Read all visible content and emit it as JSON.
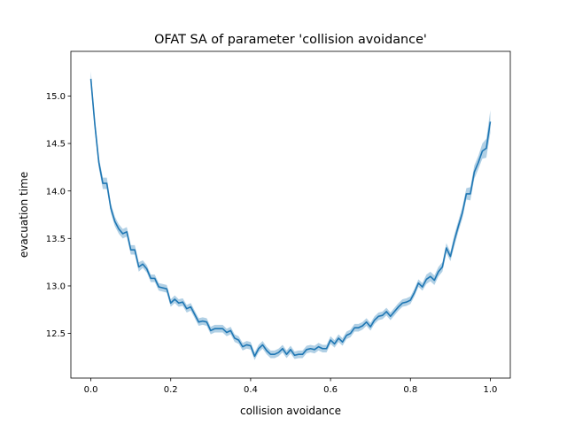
{
  "chart_data": {
    "type": "line",
    "title": "OFAT SA of parameter 'collision avoidance'",
    "xlabel": "collision avoidance",
    "ylabel": "evacuation time",
    "xlim": [
      -0.05,
      1.05
    ],
    "ylim": [
      12.03,
      15.47
    ],
    "xticks": [
      0.0,
      0.2,
      0.4,
      0.6,
      0.8,
      1.0
    ],
    "xtick_labels": [
      "0.0",
      "0.2",
      "0.4",
      "0.6",
      "0.8",
      "1.0"
    ],
    "yticks": [
      12.5,
      13.0,
      13.5,
      14.0,
      14.5,
      15.0
    ],
    "ytick_labels": [
      "12.5",
      "13.0",
      "13.5",
      "14.0",
      "14.5",
      "15.0"
    ],
    "grid": false,
    "colors": {
      "line": "#1f77b4",
      "band": "#1f77b4"
    },
    "series": [
      {
        "x": [
          0.0,
          0.01,
          0.02,
          0.03,
          0.04,
          0.05,
          0.06,
          0.07,
          0.08,
          0.09,
          0.1,
          0.11,
          0.12,
          0.13,
          0.14,
          0.15,
          0.16,
          0.17,
          0.18,
          0.19,
          0.2,
          0.21,
          0.22,
          0.23,
          0.24,
          0.25,
          0.26,
          0.27,
          0.28,
          0.29,
          0.3,
          0.31,
          0.32,
          0.33,
          0.34,
          0.35,
          0.36,
          0.37,
          0.38,
          0.39,
          0.4,
          0.41,
          0.42,
          0.43,
          0.44,
          0.45,
          0.46,
          0.47,
          0.48,
          0.49,
          0.5,
          0.51,
          0.52,
          0.53,
          0.54,
          0.55,
          0.56,
          0.57,
          0.58,
          0.59,
          0.6,
          0.61,
          0.62,
          0.63,
          0.64,
          0.65,
          0.66,
          0.67,
          0.68,
          0.69,
          0.7,
          0.71,
          0.72,
          0.73,
          0.74,
          0.75,
          0.76,
          0.77,
          0.78,
          0.79,
          0.8,
          0.81,
          0.82,
          0.83,
          0.84,
          0.85,
          0.86,
          0.87,
          0.88,
          0.89,
          0.9,
          0.91,
          0.92,
          0.93,
          0.94,
          0.95,
          0.96,
          0.97,
          0.98,
          0.99,
          1.0
        ],
        "values": [
          15.18,
          14.7,
          14.3,
          14.08,
          14.08,
          13.82,
          13.68,
          13.6,
          13.55,
          13.57,
          13.38,
          13.38,
          13.2,
          13.23,
          13.18,
          13.08,
          13.08,
          12.99,
          12.98,
          12.97,
          12.82,
          12.86,
          12.82,
          12.83,
          12.76,
          12.78,
          12.7,
          12.62,
          12.63,
          12.62,
          12.53,
          12.55,
          12.55,
          12.55,
          12.51,
          12.53,
          12.45,
          12.43,
          12.36,
          12.38,
          12.37,
          12.26,
          12.34,
          12.38,
          12.32,
          12.28,
          12.28,
          12.3,
          12.34,
          12.28,
          12.33,
          12.27,
          12.28,
          12.28,
          12.33,
          12.34,
          12.33,
          12.36,
          12.34,
          12.34,
          12.43,
          12.39,
          12.45,
          12.41,
          12.48,
          12.5,
          12.56,
          12.56,
          12.58,
          12.62,
          12.57,
          12.64,
          12.68,
          12.69,
          12.73,
          12.68,
          12.73,
          12.78,
          12.82,
          12.83,
          12.85,
          12.93,
          13.03,
          12.99,
          13.07,
          13.1,
          13.06,
          13.15,
          13.2,
          13.4,
          13.31,
          13.48,
          13.63,
          13.77,
          13.97,
          13.97,
          14.2,
          14.3,
          14.42,
          14.45,
          14.73
        ],
        "ci": [
          0.08,
          0.07,
          0.06,
          0.06,
          0.06,
          0.05,
          0.05,
          0.05,
          0.05,
          0.05,
          0.05,
          0.05,
          0.05,
          0.04,
          0.04,
          0.04,
          0.04,
          0.04,
          0.04,
          0.04,
          0.04,
          0.04,
          0.04,
          0.04,
          0.04,
          0.04,
          0.04,
          0.04,
          0.04,
          0.04,
          0.04,
          0.04,
          0.04,
          0.04,
          0.04,
          0.04,
          0.04,
          0.04,
          0.04,
          0.04,
          0.04,
          0.04,
          0.04,
          0.04,
          0.04,
          0.04,
          0.04,
          0.04,
          0.04,
          0.04,
          0.04,
          0.04,
          0.04,
          0.04,
          0.04,
          0.04,
          0.04,
          0.04,
          0.04,
          0.04,
          0.04,
          0.04,
          0.04,
          0.04,
          0.04,
          0.04,
          0.04,
          0.04,
          0.04,
          0.04,
          0.04,
          0.04,
          0.04,
          0.04,
          0.04,
          0.04,
          0.04,
          0.04,
          0.04,
          0.04,
          0.04,
          0.04,
          0.04,
          0.04,
          0.05,
          0.05,
          0.05,
          0.05,
          0.05,
          0.05,
          0.05,
          0.06,
          0.06,
          0.06,
          0.06,
          0.07,
          0.07,
          0.07,
          0.08,
          0.1,
          0.12
        ]
      }
    ]
  }
}
